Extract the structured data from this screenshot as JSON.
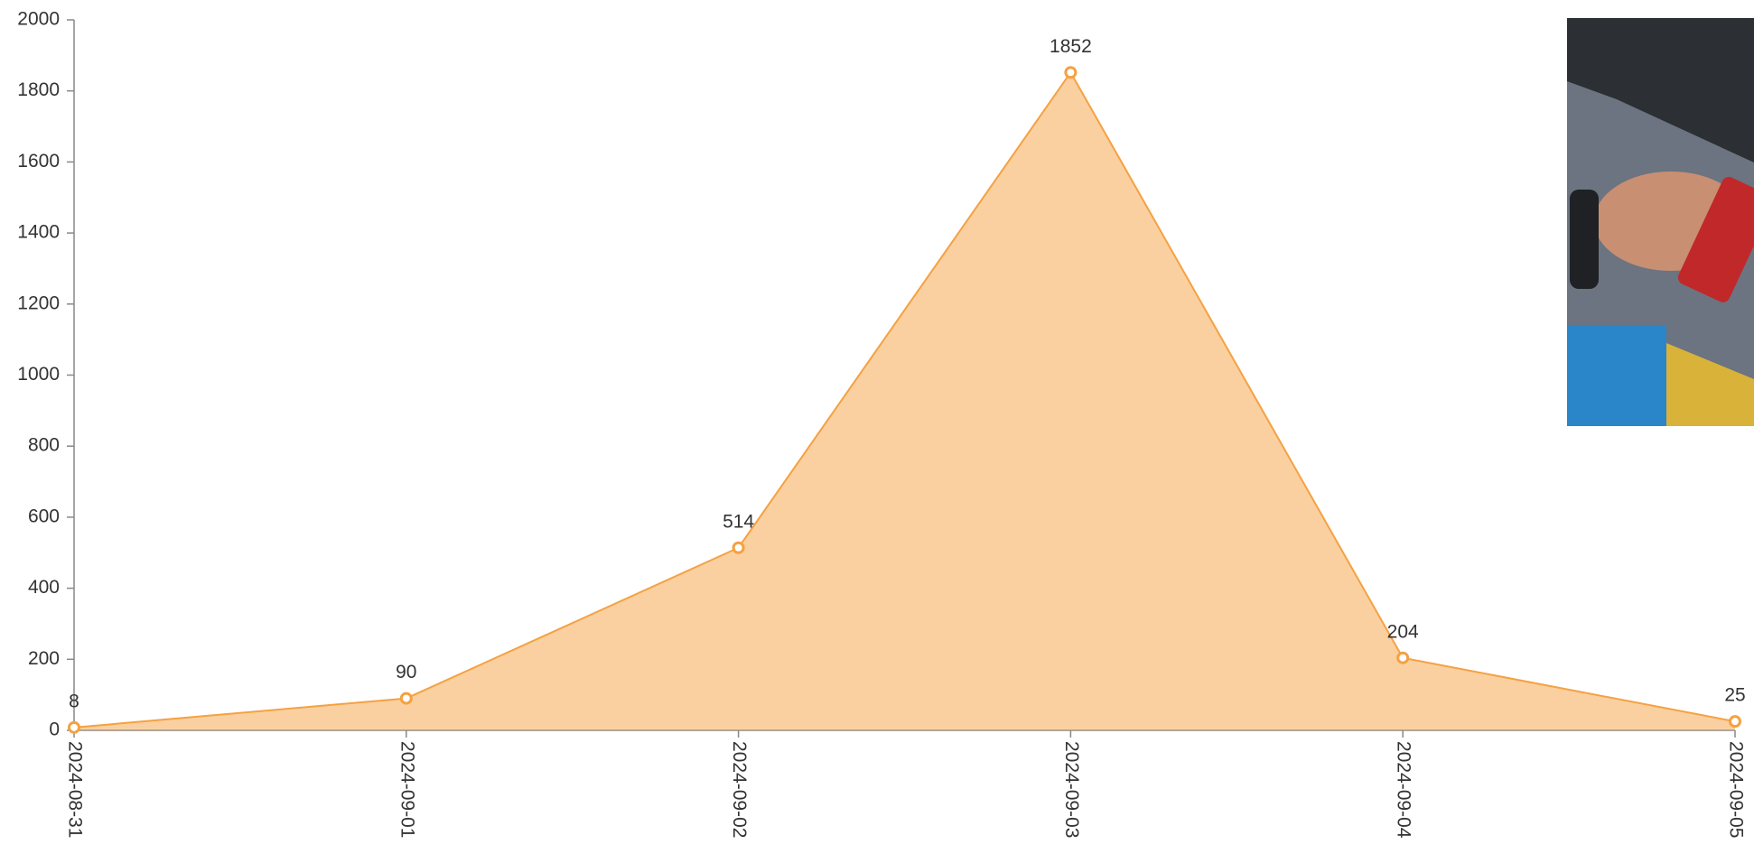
{
  "chart_data": {
    "type": "area",
    "categories": [
      "2024-08-31",
      "2024-09-01",
      "2024-09-02",
      "2024-09-03",
      "2024-09-04",
      "2024-09-05"
    ],
    "values": [
      8,
      90,
      514,
      1852,
      204,
      25
    ],
    "color": "#f5a142",
    "ylim": [
      0,
      2000
    ],
    "yticks": [
      0,
      200,
      400,
      600,
      800,
      1000,
      1200,
      1400,
      1600,
      1800,
      2000
    ],
    "data_labels": true
  }
}
